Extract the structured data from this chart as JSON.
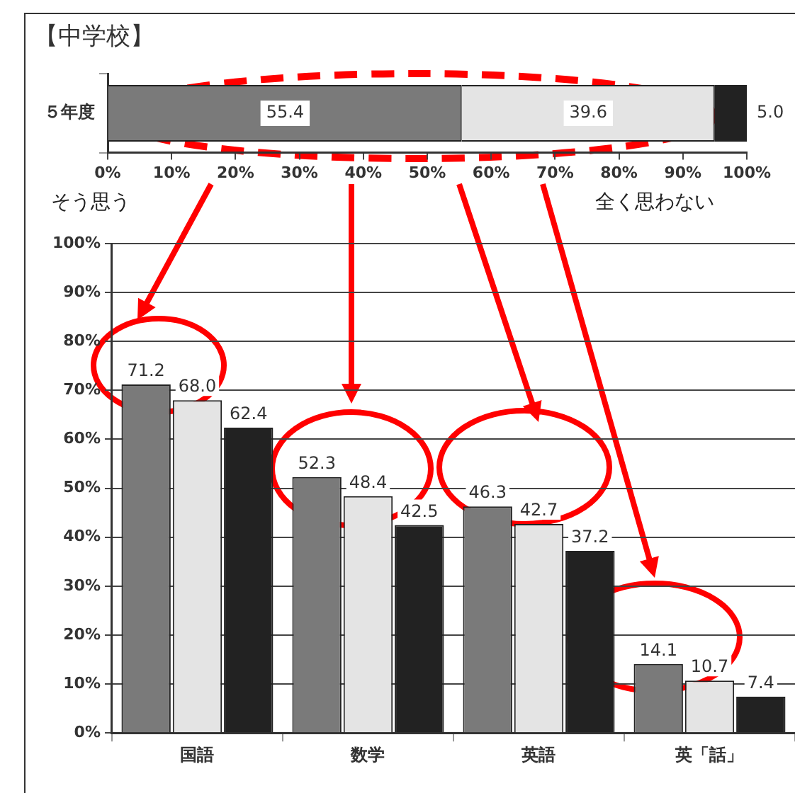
{
  "chart_data": [
    {
      "type": "bar",
      "title": "【中学校】",
      "orientation": "horizontal",
      "stacked": true,
      "categories": [
        "５年度"
      ],
      "series": [
        {
          "color": "#7a7a7a",
          "values": [
            55.4
          ],
          "value_labels": [
            "55.4"
          ]
        },
        {
          "color": "#e4e4e4",
          "values": [
            39.6
          ],
          "value_labels": [
            "39.6"
          ]
        },
        {
          "color": "#222222",
          "values": [
            5.0
          ],
          "value_labels": [
            "5.0"
          ]
        }
      ],
      "xlim": [
        0,
        100
      ],
      "xticks": [
        {
          "value": 0,
          "label": "0%"
        },
        {
          "value": 10,
          "label": "10%"
        },
        {
          "value": 20,
          "label": "20%"
        },
        {
          "value": 30,
          "label": "30%"
        },
        {
          "value": 40,
          "label": "40%"
        },
        {
          "value": 50,
          "label": "50%"
        },
        {
          "value": 60,
          "label": "60%"
        },
        {
          "value": 70,
          "label": "70%"
        },
        {
          "value": 80,
          "label": "80%"
        },
        {
          "value": 90,
          "label": "90%"
        },
        {
          "value": 100,
          "label": "100%"
        }
      ],
      "annotations": [
        "そう思う",
        "全く思わない"
      ],
      "legend": false
    },
    {
      "type": "bar",
      "categories": [
        "国語",
        "数学",
        "英語",
        "英「話」"
      ],
      "series": [
        {
          "color": "#7a7a7a",
          "values": [
            71.2,
            52.3,
            46.3,
            14.1
          ],
          "value_labels": [
            "71.2",
            "52.3",
            "46.3",
            "14.1"
          ]
        },
        {
          "color": "#e4e4e4",
          "values": [
            68.0,
            48.4,
            42.7,
            10.7
          ],
          "value_labels": [
            "68.0",
            "48.4",
            "42.7",
            "10.7"
          ]
        },
        {
          "color": "#222222",
          "values": [
            62.4,
            42.5,
            37.2,
            7.4
          ],
          "value_labels": [
            "62.4",
            "42.5",
            "37.2",
            "7.4"
          ]
        }
      ],
      "ylim": [
        0,
        100
      ],
      "yticks": [
        {
          "value": 0,
          "label": "0%"
        },
        {
          "value": 10,
          "label": "10%"
        },
        {
          "value": 20,
          "label": "20%"
        },
        {
          "value": 30,
          "label": "30%"
        },
        {
          "value": 40,
          "label": "40%"
        },
        {
          "value": 50,
          "label": "50%"
        },
        {
          "value": 60,
          "label": "60%"
        },
        {
          "value": 70,
          "label": "70%"
        },
        {
          "value": 80,
          "label": "80%"
        },
        {
          "value": 90,
          "label": "90%"
        },
        {
          "value": 100,
          "label": "100%"
        }
      ],
      "grid": "y",
      "legend": false
    }
  ]
}
